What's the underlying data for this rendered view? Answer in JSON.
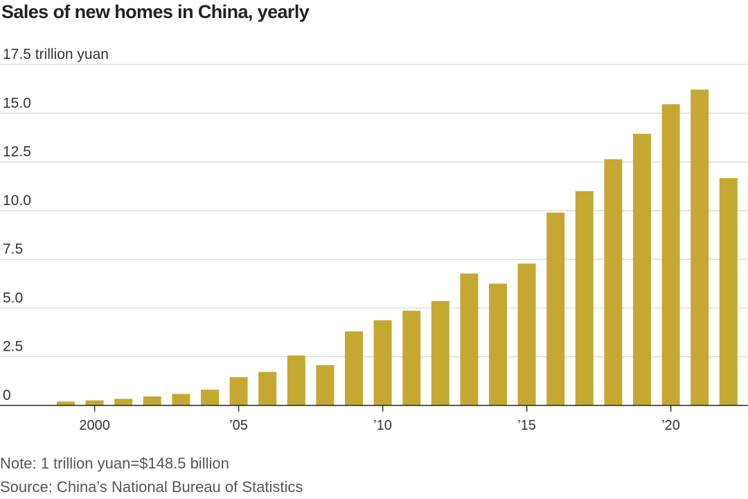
{
  "title": "Sales of new homes in China, yearly",
  "note": "Note: 1 trillion yuan=$148.5 billion",
  "source": "Source: China’s National Bureau of Statistics",
  "colors": {
    "bar": "#c4a832",
    "grid": "#d6d6d6",
    "axis": "#222222"
  },
  "chart_data": {
    "type": "bar",
    "title": "Sales of new homes in China, yearly",
    "unit_label": "17.5 trillion yuan",
    "categories": [
      1999,
      2000,
      2001,
      2002,
      2003,
      2004,
      2005,
      2006,
      2007,
      2008,
      2009,
      2010,
      2011,
      2012,
      2013,
      2014,
      2015,
      2016,
      2017,
      2018,
      2019,
      2020,
      2021,
      2022
    ],
    "values": [
      0.2,
      0.26,
      0.34,
      0.46,
      0.59,
      0.81,
      1.45,
      1.72,
      2.56,
      2.07,
      3.8,
      4.37,
      4.86,
      5.36,
      6.77,
      6.25,
      7.28,
      9.9,
      11.0,
      12.64,
      13.94,
      15.46,
      16.21,
      11.67
    ],
    "ylim": [
      0,
      17.5
    ],
    "yticks": [
      {
        "value": 0,
        "label": "0"
      },
      {
        "value": 2.5,
        "label": "2.5"
      },
      {
        "value": 5,
        "label": "5.0"
      },
      {
        "value": 7.5,
        "label": "7.5"
      },
      {
        "value": 10,
        "label": "10.0"
      },
      {
        "value": 12.5,
        "label": "12.5"
      },
      {
        "value": 15,
        "label": "15.0"
      },
      {
        "value": 17.5,
        "label": "17.5 trillion yuan"
      }
    ],
    "xticks": [
      {
        "year": 2000,
        "label": "2000"
      },
      {
        "year": 2005,
        "label": "’05"
      },
      {
        "year": 2010,
        "label": "’10"
      },
      {
        "year": 2015,
        "label": "’15"
      },
      {
        "year": 2020,
        "label": "’20"
      }
    ],
    "grid": true,
    "legend": "none"
  }
}
